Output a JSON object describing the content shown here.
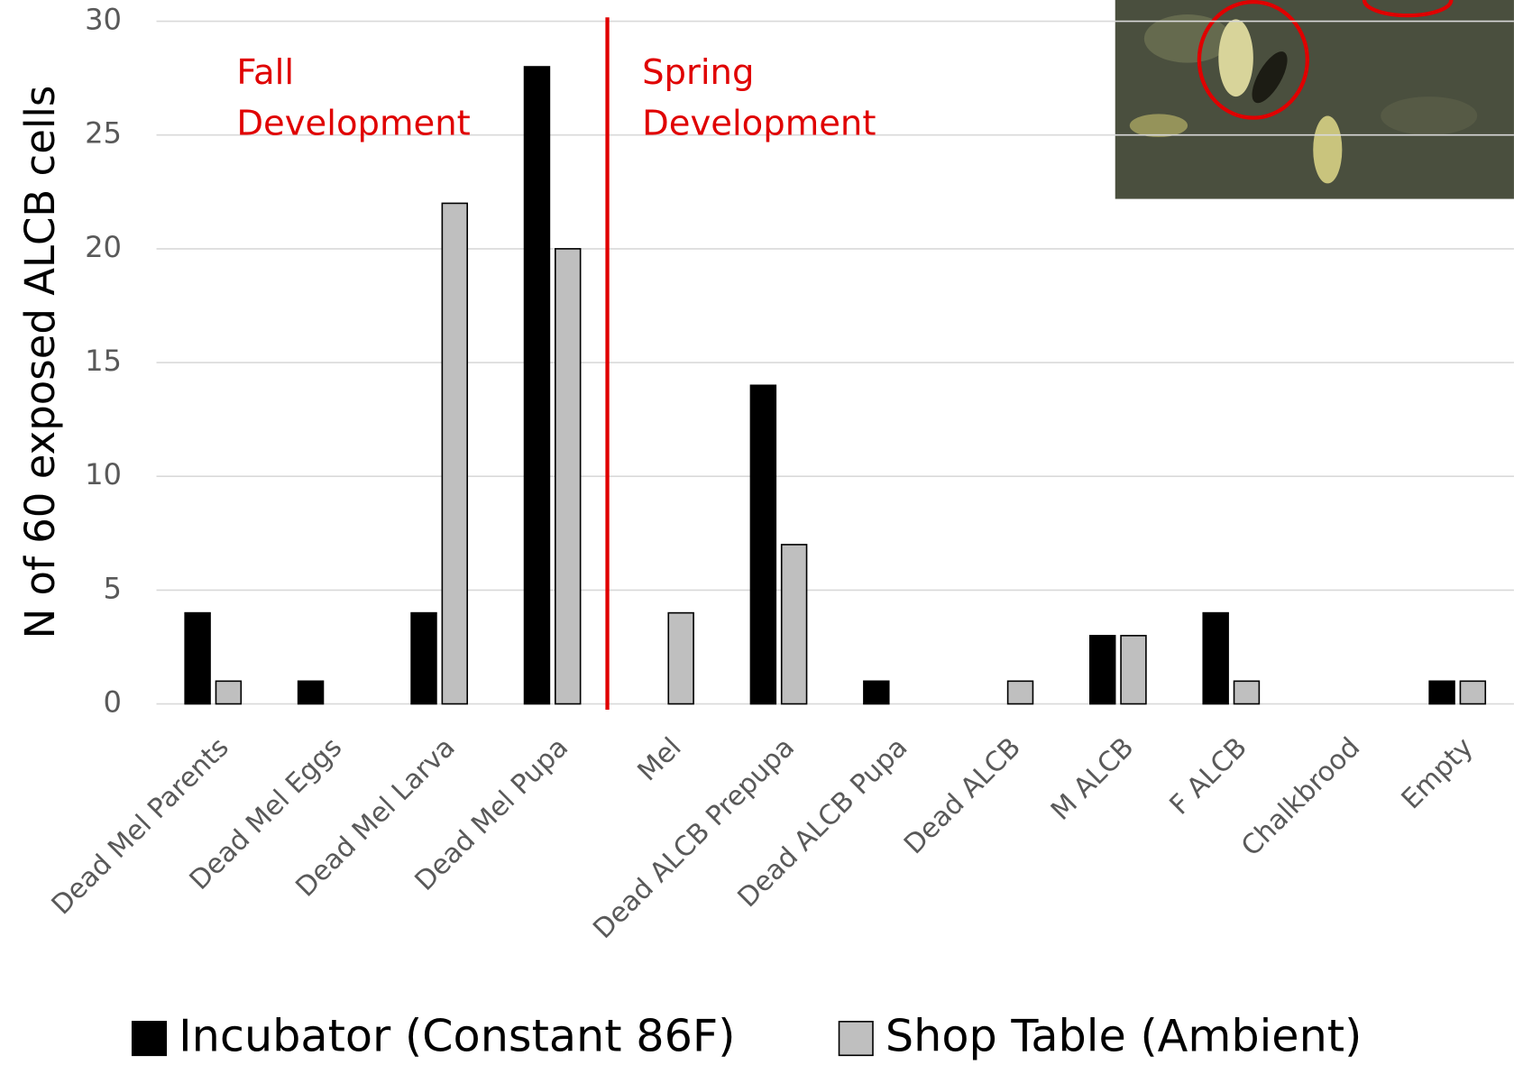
{
  "chart_data": {
    "type": "bar",
    "ylabel": "N of 60 exposed ALCB cells",
    "categories": [
      "Dead Mel Parents",
      "Dead Mel Eggs",
      "Dead Mel Larva",
      "Dead Mel Pupa",
      "Mel",
      "Dead ALCB Prepupa",
      "Dead ALCB Pupa",
      "Dead ALCB",
      "M ALCB",
      "F ALCB",
      "Chalkbrood",
      "Empty"
    ],
    "series": [
      {
        "name": "Incubator (Constant 86F)",
        "color": "#000000",
        "values": [
          4,
          1,
          4,
          28,
          0,
          14,
          1,
          0,
          3,
          4,
          0,
          1
        ]
      },
      {
        "name": "Shop Table (Ambient)",
        "color": "#bfbfbf",
        "values": [
          1,
          0,
          22,
          20,
          4,
          7,
          0,
          1,
          3,
          1,
          0,
          1
        ]
      }
    ],
    "ylim": [
      0,
      30
    ],
    "yticks": [
      0,
      5,
      10,
      15,
      20,
      25,
      30
    ],
    "grid": true,
    "annotations": [
      [
        "Fall",
        "Development"
      ],
      [
        "Spring",
        "Development"
      ]
    ]
  }
}
